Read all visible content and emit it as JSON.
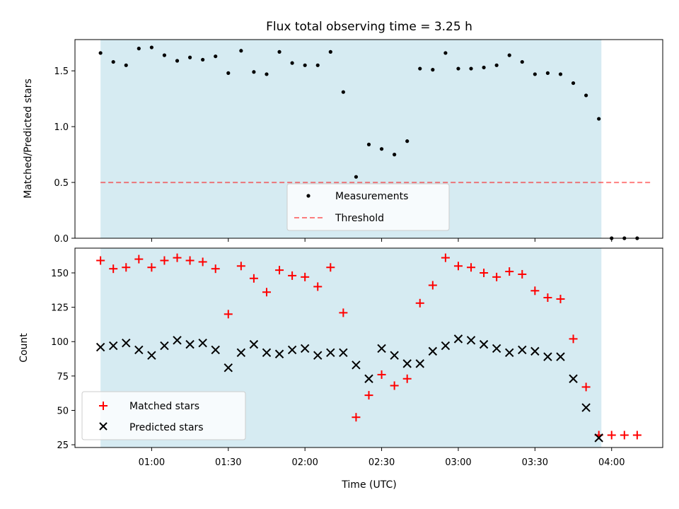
{
  "chart_data": [
    {
      "type": "scatter",
      "title": "Flux total observing time = 3.25 h",
      "xlabel": "",
      "ylabel": "Matched/Predicted stars",
      "ylim": [
        0,
        1.78
      ],
      "yticks": [
        "0.0",
        "0.5",
        "1.0",
        "1.5"
      ],
      "ytick_values": [
        0,
        0.5,
        1.0,
        1.5
      ],
      "observing_window_min": [
        40,
        236
      ],
      "threshold": 0.5,
      "threshold_x_min": [
        40,
        256
      ],
      "legend": [
        "Measurements",
        "Threshold"
      ],
      "legend_position": "lower-center",
      "series": [
        {
          "name": "Measurements",
          "x_min": [
            40,
            45,
            50,
            55,
            60,
            65,
            70,
            75,
            80,
            85,
            90,
            95,
            100,
            105,
            110,
            115,
            120,
            125,
            130,
            135,
            140,
            145,
            150,
            155,
            160,
            165,
            170,
            175,
            180,
            185,
            190,
            195,
            200,
            205,
            210,
            215,
            220,
            225,
            230,
            235,
            240,
            245,
            250
          ],
          "values": [
            1.66,
            1.58,
            1.55,
            1.7,
            1.71,
            1.64,
            1.59,
            1.62,
            1.6,
            1.63,
            1.48,
            1.68,
            1.49,
            1.47,
            1.67,
            1.57,
            1.55,
            1.55,
            1.67,
            1.31,
            0.55,
            0.84,
            0.8,
            0.75,
            0.87,
            1.52,
            1.51,
            1.66,
            1.52,
            1.52,
            1.53,
            1.55,
            1.64,
            1.58,
            1.47,
            1.48,
            1.47,
            1.39,
            1.28,
            1.07,
            0.0,
            0.0,
            0.0
          ]
        }
      ]
    },
    {
      "type": "scatter",
      "title": "",
      "xlabel": "Time (UTC)",
      "ylabel": "Count",
      "ylim": [
        23,
        168
      ],
      "yticks": [
        "25",
        "50",
        "75",
        "100",
        "125",
        "150"
      ],
      "ytick_values": [
        25,
        50,
        75,
        100,
        125,
        150
      ],
      "xlim_min": [
        30,
        260
      ],
      "xticks": [
        "01:00",
        "01:30",
        "02:00",
        "02:30",
        "03:00",
        "03:30",
        "04:00"
      ],
      "xtick_values_min": [
        60,
        90,
        120,
        150,
        180,
        210,
        240
      ],
      "observing_window_min": [
        40,
        236
      ],
      "legend": [
        "Matched stars",
        "Predicted stars"
      ],
      "legend_position": "lower-left",
      "series": [
        {
          "name": "Matched stars",
          "x_min": [
            40,
            45,
            50,
            55,
            60,
            65,
            70,
            75,
            80,
            85,
            90,
            95,
            100,
            105,
            110,
            115,
            120,
            125,
            130,
            135,
            140,
            145,
            150,
            155,
            160,
            165,
            170,
            175,
            180,
            185,
            190,
            195,
            200,
            205,
            210,
            215,
            220,
            225,
            230,
            235,
            240,
            245,
            250
          ],
          "values": [
            159,
            153,
            154,
            160,
            154,
            159,
            161,
            159,
            158,
            153,
            120,
            155,
            146,
            136,
            152,
            148,
            147,
            140,
            154,
            121,
            45,
            61,
            76,
            68,
            73,
            128,
            141,
            161,
            155,
            154,
            150,
            147,
            151,
            149,
            137,
            132,
            131,
            102,
            67,
            32,
            32,
            32,
            32
          ]
        },
        {
          "name": "Predicted stars",
          "x_min": [
            40,
            45,
            50,
            55,
            60,
            65,
            70,
            75,
            80,
            85,
            90,
            95,
            100,
            105,
            110,
            115,
            120,
            125,
            130,
            135,
            140,
            145,
            150,
            155,
            160,
            165,
            170,
            175,
            180,
            185,
            190,
            195,
            200,
            205,
            210,
            215,
            220,
            225,
            230,
            235
          ],
          "values": [
            96,
            97,
            99,
            94,
            90,
            97,
            101,
            98,
            99,
            94,
            81,
            92,
            98,
            92,
            91,
            94,
            95,
            90,
            92,
            92,
            83,
            73,
            95,
            90,
            84,
            84,
            93,
            97,
            102,
            101,
            98,
            95,
            92,
            94,
            93,
            89,
            89,
            73,
            52,
            30
          ]
        }
      ]
    }
  ],
  "colors": {
    "window": "#add8e6",
    "measurements": "#000000",
    "threshold": "#ff0000",
    "matched": "#ff0000",
    "predicted": "#000000"
  }
}
